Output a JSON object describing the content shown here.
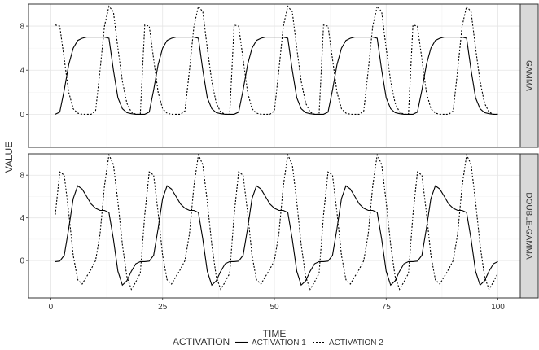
{
  "chart_data": {
    "type": "line",
    "xlabel": "TIME",
    "ylabel": "VALUE",
    "xlim": [
      -5,
      105
    ],
    "x_ticks": [
      0,
      25,
      50,
      75,
      100
    ],
    "x_tick_labels": [
      "0",
      "25",
      "50",
      "75",
      "100"
    ],
    "grid": true,
    "legend": {
      "title": "ACTIVATION",
      "position": "bottom",
      "entries": [
        {
          "label": "ACTIVATION 1",
          "linetype": "solid",
          "color": "#000000"
        },
        {
          "label": "ACTIVATION 2",
          "linetype": "dashed",
          "color": "#000000"
        }
      ]
    },
    "panels": [
      {
        "strip_label": "GAMMA",
        "ylim": [
          -3,
          10
        ],
        "y_ticks": [
          0,
          4,
          8
        ],
        "y_tick_labels": [
          "0",
          "4",
          "8"
        ],
        "period": 20,
        "series": [
          {
            "name": "ACTIVATION 1",
            "x": [
              1,
              2,
              3,
              4,
              5,
              6,
              7,
              8,
              9,
              10,
              11,
              12,
              13,
              14,
              15,
              16,
              17,
              18,
              19,
              20
            ],
            "y": [
              0.0,
              0.2,
              2.2,
              4.5,
              6.0,
              6.7,
              6.9,
              7.0,
              7.0,
              7.0,
              7.0,
              7.0,
              6.9,
              4.0,
              1.5,
              0.5,
              0.15,
              0.05,
              0.0,
              0.0
            ]
          },
          {
            "name": "ACTIVATION 2",
            "x": [
              1,
              2,
              3,
              4,
              5,
              6,
              7,
              8,
              9,
              10,
              11,
              12,
              13,
              14,
              15,
              16,
              17,
              18,
              19,
              20
            ],
            "y": [
              8.1,
              8.0,
              5.0,
              2.0,
              0.5,
              0.1,
              0.0,
              0.0,
              0.0,
              0.3,
              4.0,
              8.0,
              9.8,
              9.3,
              6.0,
              3.0,
              1.0,
              0.2,
              0.0,
              0.0
            ]
          }
        ]
      },
      {
        "strip_label": "DOUBLE-GAMMA",
        "ylim": [
          -3.5,
          10
        ],
        "y_ticks": [
          0,
          4,
          8
        ],
        "y_tick_labels": [
          "0",
          "4",
          "8"
        ],
        "period": 20,
        "series": [
          {
            "name": "ACTIVATION 1",
            "x": [
              1,
              2,
              3,
              4,
              5,
              6,
              7,
              8,
              9,
              10,
              11,
              12,
              13,
              14,
              15,
              16,
              17,
              18,
              19,
              20
            ],
            "y": [
              -0.1,
              -0.05,
              0.5,
              3.0,
              5.8,
              7.0,
              6.7,
              6.0,
              5.3,
              4.9,
              4.7,
              4.7,
              4.5,
              2.0,
              -1.0,
              -2.3,
              -1.9,
              -1.0,
              -0.3,
              -0.1
            ]
          },
          {
            "name": "ACTIVATION 2",
            "x": [
              1,
              2,
              3,
              4,
              5,
              6,
              7,
              8,
              9,
              10,
              11,
              12,
              13,
              14,
              15,
              16,
              17,
              18,
              19,
              20
            ],
            "y": [
              4.3,
              8.3,
              8.0,
              4.5,
              0.5,
              -1.8,
              -2.2,
              -1.5,
              -0.8,
              0.0,
              2.5,
              7.0,
              9.9,
              9.0,
              5.5,
              1.5,
              -1.5,
              -2.7,
              -2.0,
              -1.2
            ]
          }
        ]
      }
    ]
  },
  "colors": {
    "panel_border": "#333333",
    "grid_major": "#e5e5e5",
    "grid_minor": "#f4f4f4",
    "strip_bg": "#d9d9d9",
    "line": "#000000"
  }
}
